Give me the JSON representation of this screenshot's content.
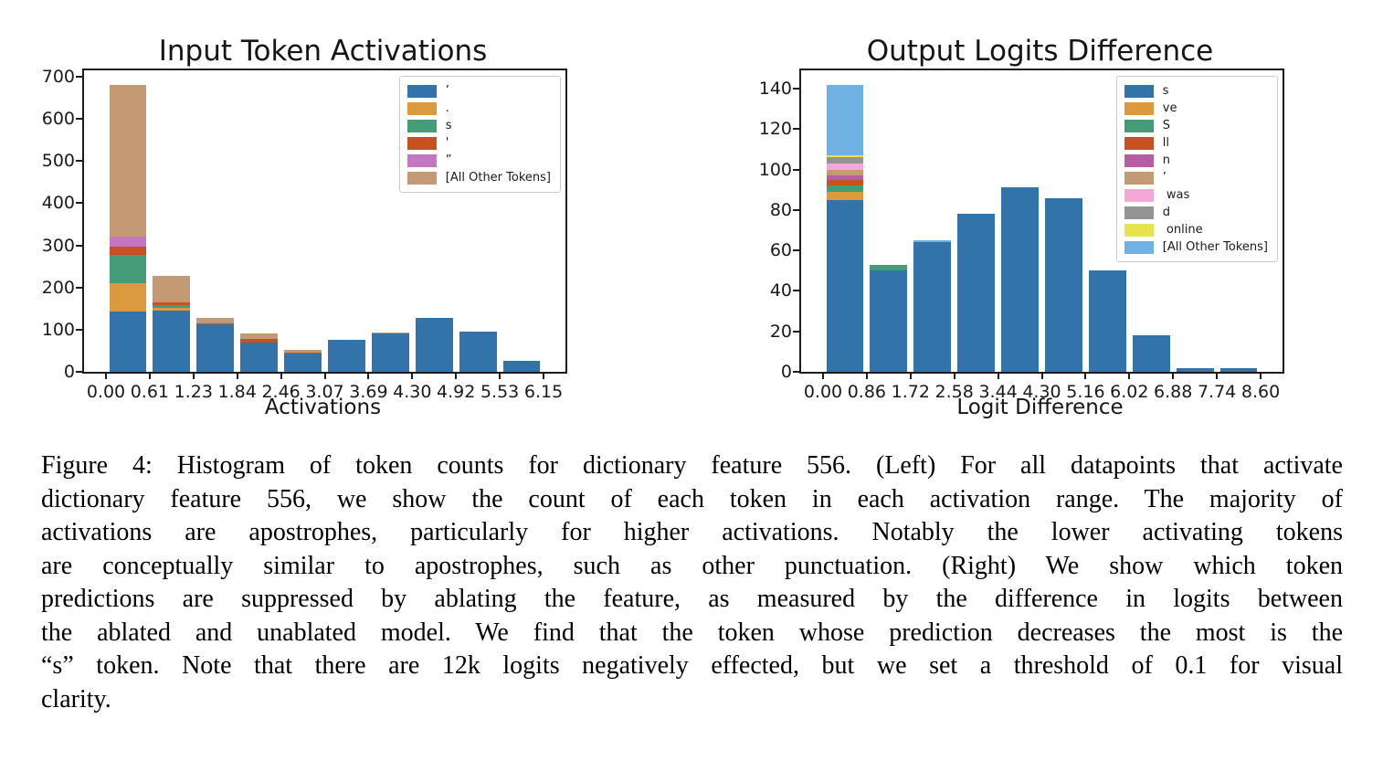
{
  "caption": {
    "lines": [
      "Figure 4: Histogram of token counts for dictionary feature 556. (Left) For all datapoints that activate",
      "dictionary feature 556, we show the count of each token in each activation range. The majority of",
      "activations are apostrophes, particularly for higher activations. Notably the lower activating tokens",
      "are conceptually similar to apostrophes, such as other punctuation. (Right) We show which token",
      "predictions are suppressed by ablating the feature, as measured by the difference in logits between",
      "the ablated and unablated model. We find that the token whose prediction decreases the most is the",
      "“s” token. Note that there are 12k logits negatively effected, but we set a threshold of 0.1 for visual",
      "clarity."
    ]
  },
  "chart_data": [
    {
      "type": "bar",
      "stacked": true,
      "title": "Input Token Activations",
      "xlabel": "Activations",
      "ylabel": "",
      "x_tick_labels": [
        "0.00",
        "0.61",
        "1.23",
        "1.84",
        "2.46",
        "3.07",
        "3.69",
        "4.30",
        "4.92",
        "5.53",
        "6.15"
      ],
      "y_ticks": [
        0,
        100,
        200,
        300,
        400,
        500,
        600,
        700
      ],
      "ylim": [
        0,
        715
      ],
      "grid": false,
      "legend_position": "upper right",
      "bar_rel_width": 0.85,
      "series": [
        {
          "name": "’",
          "color": "#3274A9",
          "values": [
            142,
            145,
            113,
            70,
            44,
            76,
            91,
            128,
            95,
            25
          ]
        },
        {
          "name": ".",
          "color": "#DC9A3E",
          "values": [
            68,
            7,
            0,
            0,
            0,
            0,
            0,
            0,
            0,
            0
          ]
        },
        {
          "name": "s",
          "color": "#459C78",
          "values": [
            67,
            6,
            0,
            0,
            0,
            0,
            0,
            0,
            0,
            0
          ]
        },
        {
          "name": "'",
          "color": "#C55220",
          "values": [
            19,
            6,
            2,
            7,
            1,
            0,
            0,
            0,
            0,
            0
          ]
        },
        {
          "name": "”",
          "color": "#C377C2",
          "values": [
            25,
            0,
            0,
            0,
            0,
            0,
            0,
            0,
            0,
            0
          ]
        },
        {
          "name": "[All Other Tokens]",
          "color": "#C39A74",
          "values": [
            360,
            64,
            13,
            13,
            7,
            0,
            3,
            0,
            0,
            0
          ]
        }
      ]
    },
    {
      "type": "bar",
      "stacked": true,
      "title": "Output Logits Difference",
      "xlabel": "Logit Difference",
      "ylabel": "",
      "x_tick_labels": [
        "0.00",
        "0.86",
        "1.72",
        "2.58",
        "3.44",
        "4.30",
        "5.16",
        "6.02",
        "6.88",
        "7.74",
        "8.60"
      ],
      "y_ticks": [
        0,
        20,
        40,
        60,
        80,
        100,
        120,
        140
      ],
      "ylim": [
        0,
        149
      ],
      "grid": false,
      "legend_position": "upper right",
      "bar_rel_width": 0.85,
      "series": [
        {
          "name": "s",
          "color": "#3274A9",
          "values": [
            85,
            50,
            64,
            78,
            91,
            86,
            50,
            18,
            2,
            2
          ]
        },
        {
          "name": "ve",
          "color": "#DC9A3E",
          "values": [
            4,
            0,
            0,
            0,
            0,
            0,
            0,
            0,
            0,
            0
          ]
        },
        {
          "name": "S",
          "color": "#459C78",
          "values": [
            3,
            3,
            0,
            0,
            0,
            0,
            0,
            0,
            0,
            0
          ]
        },
        {
          "name": "ll",
          "color": "#C55220",
          "values": [
            3,
            0,
            0,
            0,
            0,
            0,
            0,
            0,
            0,
            0
          ]
        },
        {
          "name": "n",
          "color": "#B55EA4",
          "values": [
            2,
            0,
            0,
            0,
            0,
            0,
            0,
            0,
            0,
            0
          ]
        },
        {
          "name": "’",
          "color": "#C39A74",
          "values": [
            3,
            0,
            0,
            0,
            0,
            0,
            0,
            0,
            0,
            0
          ]
        },
        {
          "name": " was",
          "color": "#F3A8D8",
          "values": [
            3,
            0,
            0,
            0,
            0,
            0,
            0,
            0,
            0,
            0
          ]
        },
        {
          "name": "d",
          "color": "#949494",
          "values": [
            3,
            0,
            0,
            0,
            0,
            0,
            0,
            0,
            0,
            0
          ]
        },
        {
          "name": " online",
          "color": "#E6E351",
          "values": [
            1,
            0,
            0,
            0,
            0,
            0,
            0,
            0,
            0,
            0
          ]
        },
        {
          "name": "[All Other Tokens]",
          "color": "#6FB1E3",
          "values": [
            35,
            0,
            1,
            0,
            0,
            0,
            0,
            0,
            0,
            0
          ]
        }
      ]
    }
  ]
}
